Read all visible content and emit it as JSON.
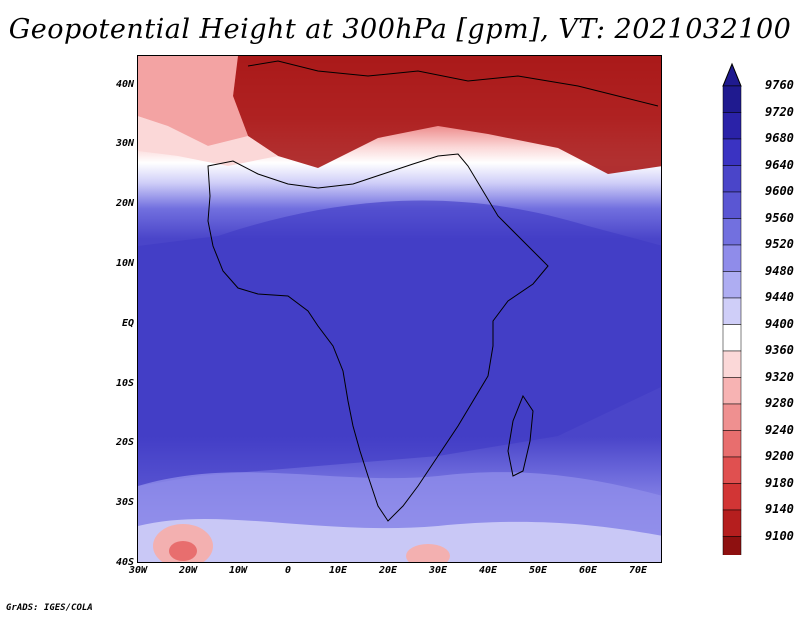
{
  "title": "Geopotential Height at 300hPa [gpm], VT: 2021032100",
  "footer": "GrADS: IGES/COLA",
  "lat_labels": [
    "40N",
    "30N",
    "20N",
    "10N",
    "EQ",
    "10S",
    "20S",
    "30S",
    "40S"
  ],
  "lon_labels": [
    "30W",
    "20W",
    "10W",
    "0",
    "10E",
    "20E",
    "30E",
    "40E",
    "50E",
    "60E",
    "70E"
  ],
  "colorbar": {
    "levels": [
      "9760",
      "9720",
      "9680",
      "9640",
      "9600",
      "9560",
      "9520",
      "9480",
      "9440",
      "9400",
      "9360",
      "9320",
      "9280",
      "9240",
      "9200",
      "9180",
      "9140",
      "9100"
    ],
    "colors": [
      "#1f1a8f",
      "#2a22a8",
      "#3a33c2",
      "#4a45c9",
      "#5a56d3",
      "#7270df",
      "#8f8cea",
      "#aeadf2",
      "#cfcef8",
      "#ffffff",
      "#fbd8d8",
      "#f7b3b3",
      "#ef9090",
      "#e86e6e",
      "#e05050",
      "#d23535",
      "#b51e1e",
      "#8e1010"
    ]
  }
}
